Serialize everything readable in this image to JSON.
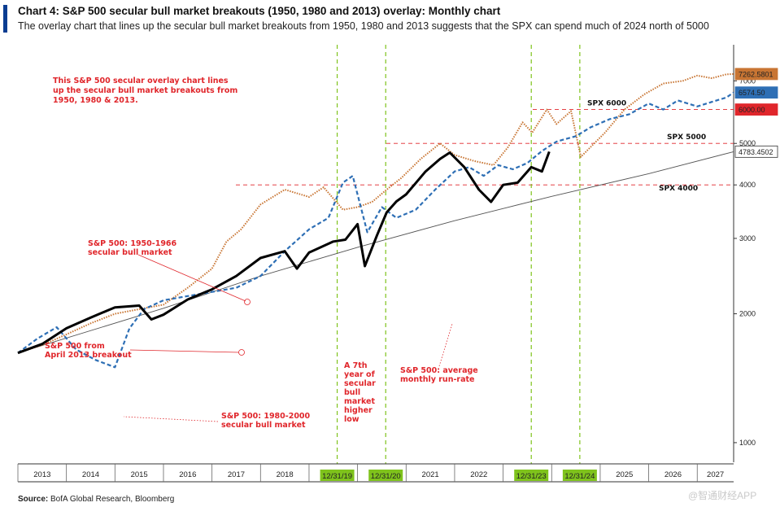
{
  "header": {
    "title": "Chart 4: S&P 500 secular bull market breakouts (1950, 1980 and 2013) overlay: Monthly chart",
    "subtitle": "The overlay chart that lines up the secular bull market breakouts from 1950, 1980 and 2013 suggests that the SPX can spend much of 2024 north of 5000"
  },
  "footer": {
    "source_label": "Source:",
    "source_text": "BofA Global Research, Bloomberg",
    "watermark": "@智通财经APP"
  },
  "colors": {
    "accent": "#0a3d91",
    "spx2013": "#000000",
    "spx1950": "#c87533",
    "spx1980": "#2e6fb5",
    "annotation": "#e0262b",
    "guide": "#7fc31c"
  },
  "chart_data": {
    "type": "line",
    "title": "Chart 4: S&P 500 secular bull market breakouts (1950, 1980 and 2013) overlay: Monthly chart",
    "x_labels": [
      "2013",
      "2014",
      "2015",
      "2016",
      "2017",
      "2018",
      "2019",
      "2020",
      "2021",
      "2022",
      "2023",
      "2024",
      "2025",
      "2026",
      "2027"
    ],
    "xlim": [
      2013.0,
      2027.75
    ],
    "yscale": "log",
    "ylim": [
      900,
      8500
    ],
    "y_ticks": [
      1000,
      2000,
      3000,
      4000,
      5000,
      7000
    ],
    "horizontal_levels": [
      {
        "label": "SPX 4000",
        "value": 4000
      },
      {
        "label": "SPX 5000",
        "value": 5000
      },
      {
        "label": "SPX 6000",
        "value": 6000
      }
    ],
    "vertical_markers": [
      {
        "label": "12/31/19",
        "x": 2019.58
      },
      {
        "label": "12/31/20",
        "x": 2020.58
      },
      {
        "label": "12/31/23",
        "x": 2023.58
      },
      {
        "label": "12/31/24",
        "x": 2024.58
      }
    ],
    "value_tags": [
      {
        "label": "7262.5801",
        "value": 7262.58,
        "color": "#c87533"
      },
      {
        "label": "6574.50",
        "value": 6574.5,
        "color": "#2e6fb5"
      },
      {
        "label": "6000.00",
        "value": 6000,
        "color": "#e0262b"
      },
      {
        "label": "4783.4502",
        "value": 4783.45,
        "color": "#ffffff"
      }
    ],
    "series": [
      {
        "name": "S&P 500 from April 2013 breakout",
        "style": "solid-thick",
        "color": "#000000",
        "x": [
          2013.0,
          2013.5,
          2014.0,
          2014.5,
          2015.0,
          2015.5,
          2015.75,
          2016.0,
          2016.5,
          2017.0,
          2017.5,
          2018.0,
          2018.5,
          2018.75,
          2019.0,
          2019.5,
          2019.75,
          2020.0,
          2020.15,
          2020.4,
          2020.6,
          2020.8,
          2021.0,
          2021.4,
          2021.7,
          2021.9,
          2022.2,
          2022.5,
          2022.75,
          2023.0,
          2023.3,
          2023.58,
          2023.8,
          2023.95
        ],
        "values": [
          1620,
          1700,
          1850,
          1960,
          2070,
          2090,
          1940,
          1990,
          2160,
          2280,
          2450,
          2700,
          2800,
          2550,
          2780,
          2950,
          2980,
          3240,
          2585,
          3050,
          3450,
          3660,
          3800,
          4300,
          4600,
          4760,
          4400,
          3900,
          3650,
          4000,
          4050,
          4400,
          4300,
          4783
        ]
      },
      {
        "name": "S&P 500: 1950-1966 secular bull market",
        "style": "dotted",
        "color": "#c87533",
        "x": [
          2013.0,
          2013.5,
          2014.0,
          2014.5,
          2015.0,
          2015.5,
          2016.0,
          2016.5,
          2017.0,
          2017.3,
          2017.6,
          2018.0,
          2018.5,
          2019.0,
          2019.3,
          2019.7,
          2020.0,
          2020.3,
          2020.6,
          2020.9,
          2021.3,
          2021.7,
          2022.0,
          2022.4,
          2022.8,
          2023.1,
          2023.4,
          2023.6,
          2023.9,
          2024.1,
          2024.4,
          2024.6,
          2024.8,
          2025.1,
          2025.5,
          2025.9,
          2026.3,
          2026.7,
          2027.0,
          2027.3,
          2027.6,
          2027.75
        ],
        "values": [
          1620,
          1690,
          1790,
          1900,
          2000,
          2050,
          2100,
          2300,
          2550,
          2950,
          3150,
          3600,
          3900,
          3750,
          3950,
          3500,
          3550,
          3650,
          3900,
          4150,
          4600,
          5000,
          4700,
          4550,
          4450,
          4900,
          5600,
          5300,
          6000,
          5550,
          5950,
          4650,
          4900,
          5300,
          6000,
          6500,
          6900,
          7000,
          7200,
          7100,
          7250,
          7262
        ]
      },
      {
        "name": "S&P 500: 1980-2000 secular bull market",
        "style": "dashed",
        "color": "#2e6fb5",
        "x": [
          2013.0,
          2013.4,
          2013.8,
          2014.2,
          2014.6,
          2015.0,
          2015.3,
          2015.6,
          2016.0,
          2016.5,
          2017.0,
          2017.5,
          2018.0,
          2018.5,
          2019.0,
          2019.4,
          2019.7,
          2019.9,
          2020.2,
          2020.5,
          2020.8,
          2021.2,
          2021.6,
          2022.0,
          2022.3,
          2022.6,
          2022.9,
          2023.2,
          2023.5,
          2023.8,
          2024.1,
          2024.5,
          2024.8,
          2025.2,
          2025.6,
          2026.0,
          2026.3,
          2026.6,
          2027.0,
          2027.3,
          2027.6,
          2027.75
        ],
        "values": [
          1620,
          1750,
          1860,
          1650,
          1560,
          1500,
          1850,
          2050,
          2150,
          2200,
          2250,
          2300,
          2450,
          2800,
          3150,
          3350,
          4050,
          4200,
          3100,
          3550,
          3350,
          3500,
          3900,
          4300,
          4400,
          4200,
          4450,
          4350,
          4500,
          4800,
          5050,
          5200,
          5450,
          5700,
          5850,
          6200,
          6000,
          6300,
          6100,
          6250,
          6400,
          6574
        ]
      },
      {
        "name": "S&P 500: average monthly run-rate",
        "style": "thin",
        "color": "#555555",
        "x": [
          2013.0,
          2016.0,
          2018.0,
          2020.0,
          2022.0,
          2024.0,
          2026.0,
          2027.75
        ],
        "values": [
          1620,
          2060,
          2450,
          2860,
          3300,
          3760,
          4250,
          4783
        ]
      }
    ],
    "annotations": [
      {
        "lines": [
          "This S&P 500 secular overlay chart lines",
          "up the secular bull market breakouts from",
          "1950, 1980 & 2013."
        ]
      },
      {
        "lines": [
          "S&P 500: 1950-1966",
          "secular bull market"
        ]
      },
      {
        "lines": [
          "S&P 500 from",
          "April 2013 breakout"
        ]
      },
      {
        "lines": [
          "S&P 500: 1980-2000",
          "secular bull market"
        ]
      },
      {
        "lines": [
          "A 7th",
          "year of",
          "secular",
          "bull",
          "market",
          "higher",
          "low"
        ]
      },
      {
        "lines": [
          "S&P 500: average",
          "monthly run-rate"
        ]
      }
    ]
  }
}
